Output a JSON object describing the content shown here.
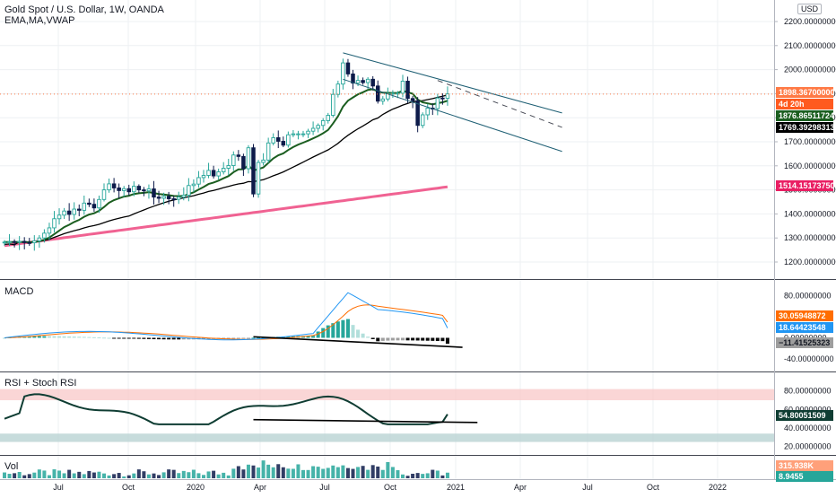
{
  "header": {
    "title": "Gold Spot / U.S. Dollar, 1W, OANDA",
    "indicators": "EMA,MA,VWAP",
    "currency": "USD"
  },
  "colors": {
    "up": "#26a69a",
    "down": "#0d1b4a",
    "ema": "#1b5e20",
    "ma": "#000000",
    "vwap": "#f06292",
    "channel": "#1e5f74",
    "macd": "#2196f3",
    "signal": "#ff6d00",
    "rsi": "#0f3d33",
    "overbought": "#f8c4c4",
    "oversold": "#b9d3d3",
    "vol_up": "#26a69a",
    "vol_down": "#0d1b4a",
    "current_price": "#ff7a45"
  },
  "chart_data": [
    {
      "type": "candlestick",
      "name": "price",
      "x_tick_labels": [
        "Jul",
        "Oct",
        "2020",
        "Apr",
        "Jul",
        "Oct",
        "2021",
        "Apr",
        "Jul",
        "Oct",
        "2022"
      ],
      "y_tick_labels": [
        "2200.00000000",
        "2100.00000000",
        "2000.00000000",
        "1900.00000000",
        "1800.00000000",
        "1700.00000000",
        "1600.00000000",
        "1500.00000000",
        "1400.00000000",
        "1300.00000000",
        "1200.00000000"
      ],
      "ylim": [
        1170,
        2245
      ],
      "close": [
        1283,
        1285,
        1282,
        1286,
        1281,
        1280,
        1288,
        1300,
        1320,
        1342,
        1380,
        1395,
        1412,
        1398,
        1420,
        1415,
        1445,
        1440,
        1425,
        1460,
        1500,
        1525,
        1508,
        1497,
        1505,
        1492,
        1515,
        1500,
        1496,
        1504,
        1470,
        1465,
        1473,
        1463,
        1461,
        1470,
        1478,
        1518,
        1524,
        1551,
        1560,
        1581,
        1558,
        1575,
        1590,
        1601,
        1645,
        1639,
        1588,
        1675,
        1483,
        1614,
        1624,
        1695,
        1717,
        1702,
        1686,
        1729,
        1733,
        1733,
        1733,
        1744,
        1756,
        1768,
        1788,
        1810,
        1897,
        1940,
        2028,
        1982,
        1944,
        1955,
        1946,
        1960,
        1932,
        1869,
        1878,
        1900,
        1902,
        1902,
        1952,
        1880,
        1871,
        1768,
        1812,
        1840,
        1838,
        1882,
        1881,
        1899
      ],
      "overlay_labels": [
        "1898.36700000",
        "4d 20h",
        "1876.86511724",
        "1769.39298313",
        "1514.15173750"
      ],
      "price_lines": {
        "current": 1898.367,
        "ema": 1876.86511724,
        "ma": 1769.39298313,
        "vwap": 1514.1517375
      },
      "channel": {
        "upper": [
          [
            68,
            2070
          ],
          [
            112,
            1820
          ]
        ],
        "lower": [
          [
            68,
            1960
          ],
          [
            112,
            1660
          ]
        ],
        "middle_dashed": [
          [
            87,
            1955
          ],
          [
            112,
            1760
          ]
        ]
      }
    },
    {
      "type": "line+histogram",
      "name": "macd",
      "title": "MACD",
      "y_tick_labels": [
        "80.00000000",
        "40.00000000",
        "0.00000000",
        "-40.00000000"
      ],
      "ylim": [
        -64,
        110
      ],
      "macd_last": 18.64423548,
      "signal_last": 30.05948872,
      "hist_last": -11.41525323,
      "overlay_labels": [
        "30.05948872",
        "18.64423548",
        "−11.41525323"
      ],
      "divergence_line": [
        [
          50,
          2
        ],
        [
          92,
          -18
        ]
      ]
    },
    {
      "type": "line",
      "name": "rsi",
      "title": "RSI + Stoch RSI",
      "y_tick_labels": [
        "80.00000000",
        "60.00000000",
        "40.00000000",
        "20.00000000"
      ],
      "ylim": [
        11,
        100
      ],
      "bands": {
        "overbought": [
          70,
          82
        ],
        "oversold": [
          25,
          34
        ]
      },
      "overlay_labels": [
        "54.80051509"
      ],
      "last": 54.80051509,
      "divergence_line": [
        [
          50,
          49
        ],
        [
          95,
          46
        ]
      ]
    },
    {
      "type": "bar",
      "name": "volume",
      "title": "Vol",
      "overlay_labels": [
        "315.938K",
        "8.9455"
      ]
    }
  ]
}
